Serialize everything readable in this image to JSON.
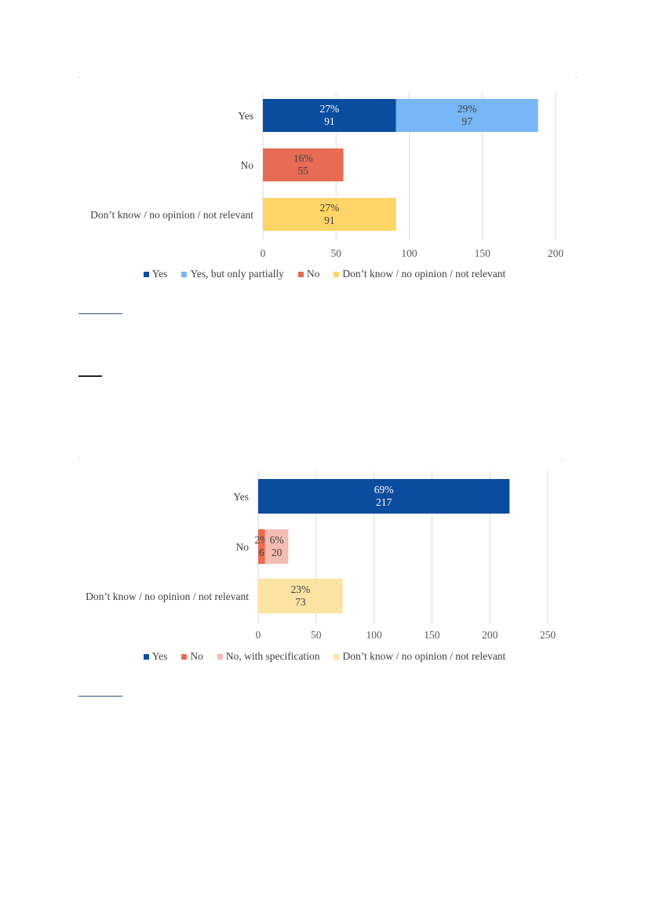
{
  "chart_data": [
    {
      "type": "bar",
      "orientation": "horizontal",
      "stacked": true,
      "categories": [
        "Yes",
        "No",
        "Don’t know / no opinion / not relevant"
      ],
      "series": [
        {
          "name": "Yes",
          "color": "#0a4c9e",
          "values": [
            91,
            null,
            null
          ],
          "labels": [
            "27%\n91",
            "",
            ""
          ]
        },
        {
          "name": "Yes, but only partially",
          "color": "#78b6f5",
          "values": [
            97,
            null,
            null
          ],
          "labels": [
            "29%\n97",
            "",
            ""
          ]
        },
        {
          "name": "No",
          "color": "#e76c53",
          "values": [
            null,
            55,
            null
          ],
          "labels": [
            "",
            "16%\n55",
            ""
          ]
        },
        {
          "name": "Don’t know / no opinion / not relevant",
          "color": "#fed566",
          "values": [
            null,
            null,
            91
          ],
          "labels": [
            "",
            "",
            "27%\n91"
          ]
        }
      ],
      "xlim": [
        0,
        200
      ],
      "xticks": [
        "0",
        "50",
        "100",
        "150",
        "200"
      ],
      "grid": true,
      "legend_position": "bottom"
    },
    {
      "type": "bar",
      "orientation": "horizontal",
      "stacked": true,
      "categories": [
        "Yes",
        "No",
        "Don’t know / no opinion / not relevant"
      ],
      "series": [
        {
          "name": "Yes",
          "color": "#0a4c9e",
          "values": [
            217,
            null,
            null
          ],
          "labels": [
            "69%\n217",
            "",
            ""
          ]
        },
        {
          "name": "No",
          "color": "#e76c53",
          "values": [
            null,
            6,
            null
          ],
          "labels": [
            "",
            "2%\n6",
            ""
          ]
        },
        {
          "name": "No, with specification",
          "color": "#f4bcb3",
          "values": [
            null,
            20,
            null
          ],
          "labels": [
            "",
            "6%\n20",
            ""
          ]
        },
        {
          "name": "Don’t know / no opinion / not relevant",
          "color": "#fde3a3",
          "values": [
            null,
            null,
            73
          ],
          "labels": [
            "",
            "",
            "23%\n73"
          ]
        }
      ],
      "xlim": [
        0,
        250
      ],
      "xticks": [
        "0",
        "50",
        "100",
        "150",
        "200",
        "250"
      ],
      "grid": true,
      "legend_position": "bottom"
    }
  ]
}
